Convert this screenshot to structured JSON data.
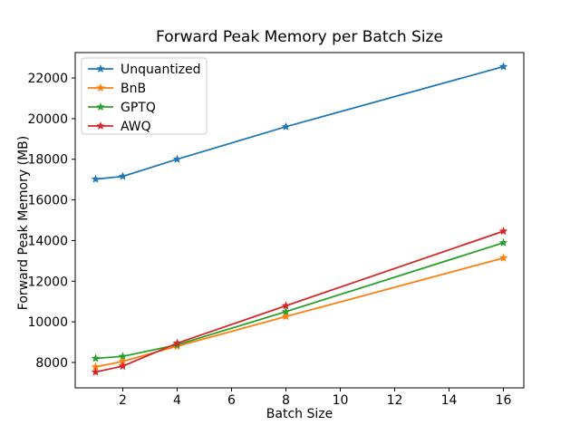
{
  "title": "Forward Peak Memory per Batch Size",
  "chart_data": {
    "type": "line",
    "title": "Forward Peak Memory per Batch Size",
    "xlabel": "Batch Size",
    "ylabel": "Forward Peak Memory (MB)",
    "x": [
      1,
      2,
      4,
      8,
      16
    ],
    "series": [
      {
        "name": "Unquantized",
        "color": "#1f77b4",
        "values": [
          17020,
          17160,
          18000,
          19600,
          22560
        ]
      },
      {
        "name": "BnB",
        "color": "#ff7f0e",
        "values": [
          7780,
          8050,
          8800,
          10260,
          13140
        ]
      },
      {
        "name": "GPTQ",
        "color": "#2ca02c",
        "values": [
          8200,
          8300,
          8870,
          10500,
          13890
        ]
      },
      {
        "name": "AWQ",
        "color": "#d62728",
        "values": [
          7530,
          7820,
          8950,
          10790,
          14460
        ]
      }
    ],
    "xticks": [
      2,
      4,
      6,
      8,
      10,
      12,
      14,
      16
    ],
    "yticks": [
      8000,
      10000,
      12000,
      14000,
      16000,
      18000,
      20000,
      22000
    ],
    "xlim": [
      0.25,
      16.75
    ],
    "ylim": [
      6750,
      23250
    ],
    "grid": false,
    "marker": "star",
    "legend_position": "upper-left"
  }
}
